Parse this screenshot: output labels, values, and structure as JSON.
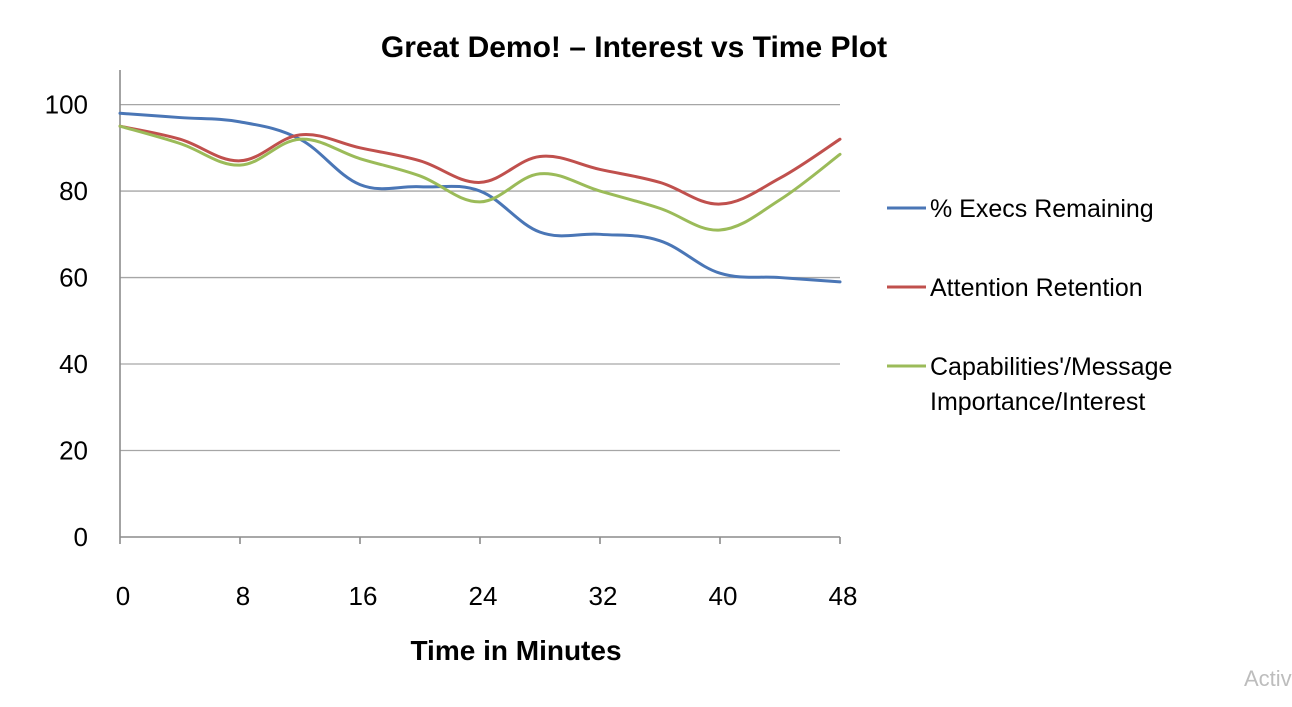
{
  "chart_data": {
    "type": "line",
    "title": "Great Demo! – Interest vs Time Plot",
    "xlabel": "Time in Minutes",
    "ylabel": "",
    "x": [
      0,
      4,
      8,
      12,
      16,
      20,
      24,
      28,
      32,
      36,
      40,
      44,
      48
    ],
    "x_ticks": [
      0,
      8,
      16,
      24,
      32,
      40,
      48
    ],
    "y_ticks": [
      0,
      20,
      40,
      60,
      80,
      100
    ],
    "xlim": [
      0,
      48
    ],
    "ylim": [
      0,
      108
    ],
    "grid": "horizontal",
    "legend_position": "right",
    "series": [
      {
        "name": "% Execs Remaining",
        "color": "#4a76b6",
        "values": [
          98,
          97,
          96,
          92,
          81.5,
          81,
          80,
          70.5,
          70,
          68.5,
          61,
          60,
          59
        ]
      },
      {
        "name": "Attention Retention",
        "color": "#c0504d",
        "values": [
          95,
          92,
          87,
          93,
          90,
          87,
          82,
          88,
          85,
          82,
          77,
          83,
          92
        ]
      },
      {
        "name": "Capabilities'/Message Importance/Interest",
        "legend_lines": [
          "Capabilities'/Message",
          "Importance/Interest"
        ],
        "color": "#9bbb59",
        "values": [
          95,
          91,
          86,
          92,
          87.5,
          83.5,
          77.5,
          84,
          80,
          76,
          71,
          78,
          88.5
        ]
      }
    ]
  },
  "watermark": "Activ"
}
